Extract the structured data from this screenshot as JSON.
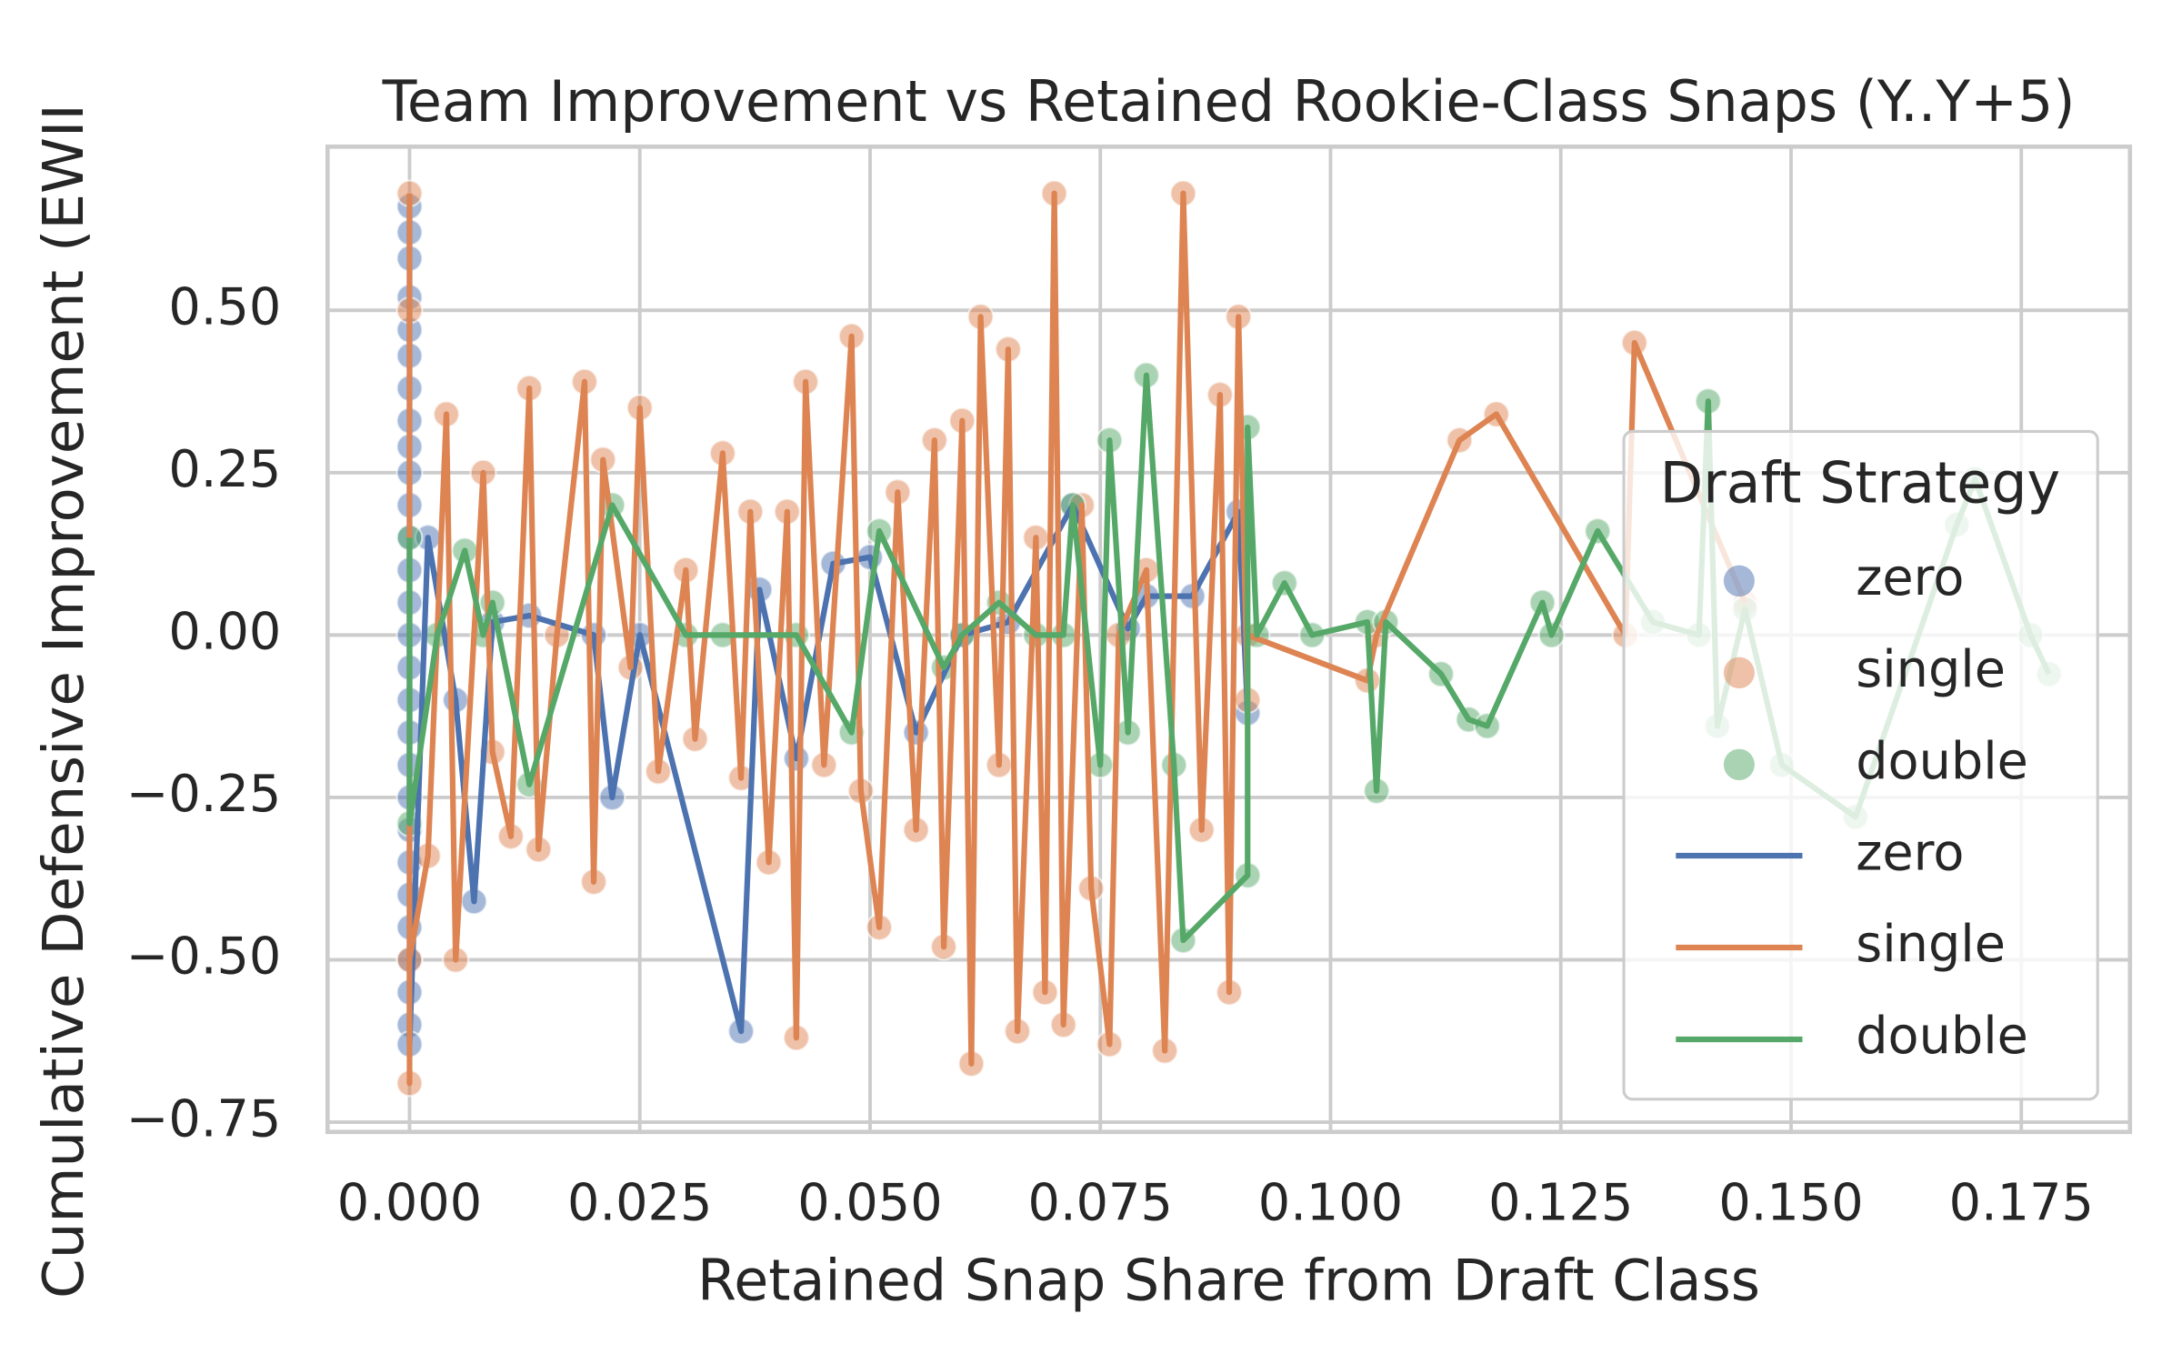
{
  "chart_data": {
    "type": "scatter-line",
    "title": "Team Improvement vs Retained Rookie-Class Snaps (Y..Y+5)",
    "x_label": "Retained Snap Share from Draft Class",
    "y_label": "Cumulative Defensive Improvement (EWII",
    "legend_title": "Draft Strategy",
    "legend_position": "right",
    "grid": true,
    "xlim": [
      -0.0089,
      0.1868
    ],
    "ylim": [
      -0.765,
      0.752
    ],
    "xticks": [
      {
        "value": 0,
        "label": "0.000"
      },
      {
        "value": 0.025,
        "label": "0.025"
      },
      {
        "value": 0.05,
        "label": "0.050"
      },
      {
        "value": 0.075,
        "label": "0.075"
      },
      {
        "value": 0.1,
        "label": "0.100"
      },
      {
        "value": 0.125,
        "label": "0.125"
      },
      {
        "value": 0.15,
        "label": "0.150"
      },
      {
        "value": 0.175,
        "label": "0.175"
      }
    ],
    "yticks": [
      {
        "value": -0.75,
        "label": "−0.75"
      },
      {
        "value": -0.5,
        "label": "−0.50"
      },
      {
        "value": -0.25,
        "label": "−0.25"
      },
      {
        "value": 0,
        "label": "0.00"
      },
      {
        "value": 0.25,
        "label": "0.25"
      },
      {
        "value": 0.5,
        "label": "0.50"
      }
    ],
    "series": [
      {
        "name": "zero",
        "color": "#4c72b0",
        "x": [
          0,
          0,
          0,
          0,
          0,
          0,
          0,
          0,
          0,
          0,
          0,
          0,
          0,
          0,
          0,
          0,
          0,
          0,
          0,
          0,
          0,
          0,
          0,
          0,
          0,
          0,
          0,
          0,
          0.002,
          0.005,
          0.007,
          0.009,
          0.013,
          0.02,
          0.022,
          0.025,
          0.036,
          0.038,
          0.042,
          0.046,
          0.05,
          0.055,
          0.06,
          0.065,
          0.072,
          0.078,
          0.08,
          0.085,
          0.09,
          0.091
        ],
        "values": [
          0.66,
          0.62,
          0.58,
          0.52,
          0.47,
          0.43,
          0.38,
          0.33,
          0.29,
          0.25,
          0.2,
          0.15,
          0.1,
          0.05,
          0,
          -0.05,
          -0.1,
          -0.15,
          -0.2,
          -0.25,
          -0.3,
          -0.35,
          -0.4,
          -0.45,
          -0.5,
          -0.55,
          -0.6,
          -0.63,
          0.15,
          -0.1,
          -0.41,
          0.02,
          0.03,
          0,
          -0.25,
          0,
          -0.61,
          0.07,
          -0.19,
          0.11,
          0.12,
          -0.15,
          0,
          0.02,
          0.2,
          0.01,
          0.06,
          0.06,
          0.19,
          -0.12
        ]
      },
      {
        "name": "single",
        "color": "#dd8452",
        "x": [
          0,
          0,
          0,
          0,
          0.002,
          0.004,
          0.005,
          0.008,
          0.009,
          0.011,
          0.013,
          0.014,
          0.016,
          0.019,
          0.02,
          0.021,
          0.024,
          0.025,
          0.027,
          0.03,
          0.031,
          0.034,
          0.036,
          0.037,
          0.039,
          0.041,
          0.042,
          0.043,
          0.045,
          0.048,
          0.049,
          0.051,
          0.053,
          0.055,
          0.057,
          0.058,
          0.06,
          0.061,
          0.062,
          0.064,
          0.065,
          0.066,
          0.068,
          0.069,
          0.07,
          0.071,
          0.073,
          0.074,
          0.076,
          0.077,
          0.08,
          0.082,
          0.084,
          0.086,
          0.088,
          0.089,
          0.09,
          0.091,
          0.091,
          0.104,
          0.105,
          0.114,
          0.118,
          0.132,
          0.133,
          0.145
        ],
        "values": [
          0.68,
          -0.69,
          0.5,
          -0.5,
          -0.34,
          0.34,
          -0.5,
          0.25,
          -0.18,
          -0.31,
          0.38,
          -0.33,
          0,
          0.39,
          -0.38,
          0.27,
          -0.05,
          0.35,
          -0.21,
          0.1,
          -0.16,
          0.28,
          -0.22,
          0.19,
          -0.35,
          0.19,
          -0.62,
          0.39,
          -0.2,
          0.46,
          -0.24,
          -0.45,
          0.22,
          -0.3,
          0.3,
          -0.48,
          0.33,
          -0.66,
          0.49,
          -0.2,
          0.44,
          -0.61,
          0.15,
          -0.55,
          0.68,
          -0.6,
          0.2,
          -0.39,
          -0.63,
          0,
          0.1,
          -0.64,
          0.68,
          -0.3,
          0.37,
          -0.55,
          0.49,
          -0.1,
          0,
          -0.07,
          0,
          0.3,
          0.34,
          0,
          0.45,
          0.05
        ]
      },
      {
        "name": "double",
        "color": "#55a868",
        "x": [
          0,
          0,
          0.003,
          0.006,
          0.008,
          0.009,
          0.013,
          0.022,
          0.03,
          0.034,
          0.042,
          0.048,
          0.051,
          0.058,
          0.06,
          0.064,
          0.068,
          0.071,
          0.072,
          0.075,
          0.076,
          0.078,
          0.08,
          0.083,
          0.084,
          0.091,
          0.091,
          0.092,
          0.095,
          0.098,
          0.104,
          0.105,
          0.106,
          0.112,
          0.115,
          0.117,
          0.123,
          0.124,
          0.129,
          0.135,
          0.14,
          0.141,
          0.142,
          0.145,
          0.149,
          0.157,
          0.168,
          0.17,
          0.176,
          0.178
        ],
        "values": [
          0.15,
          -0.29,
          0,
          0.13,
          0,
          0.05,
          -0.23,
          0.2,
          0,
          0,
          0,
          -0.15,
          0.16,
          -0.05,
          0,
          0.05,
          0,
          0,
          0.2,
          -0.2,
          0.3,
          -0.15,
          0.4,
          -0.2,
          -0.47,
          -0.37,
          0.32,
          0,
          0.08,
          0,
          0.02,
          -0.24,
          0.02,
          -0.06,
          -0.13,
          -0.14,
          0.05,
          0,
          0.16,
          0.02,
          0,
          0.36,
          -0.14,
          0.04,
          -0.2,
          -0.28,
          0.17,
          0.24,
          0,
          -0.06
        ]
      }
    ]
  }
}
